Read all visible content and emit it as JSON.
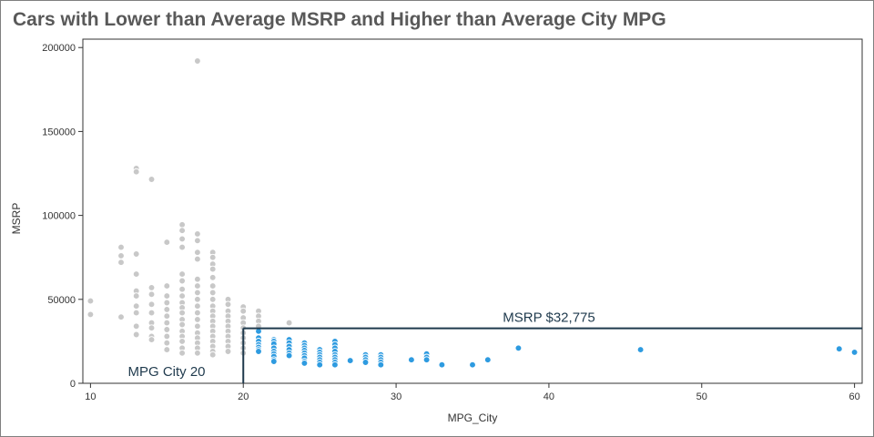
{
  "chart_data": {
    "type": "scatter",
    "title": "Cars with Lower than Average MSRP and Higher than Average City MPG",
    "xlabel": "MPG_City",
    "ylabel": "MSRP",
    "xlim": [
      9.5,
      60.5
    ],
    "ylim": [
      0,
      205000
    ],
    "xticks": [
      "10",
      "20",
      "30",
      "40",
      "50",
      "60"
    ],
    "yticks": [
      "0",
      "50000",
      "100000",
      "150000",
      "200000"
    ],
    "grid": false,
    "legend": "none",
    "colors": {
      "highlight": "#2e9be0",
      "other": "#c8c8c8",
      "reference": "#1f3a4d"
    },
    "reference_lines": {
      "msrp": {
        "value": 32775,
        "label": "MSRP $32,775"
      },
      "mpg": {
        "value": 20,
        "label": "MPG City 20"
      }
    },
    "series": [
      {
        "group": "other",
        "points": [
          [
            10,
            49000
          ],
          [
            10,
            41000
          ],
          [
            12,
            81000
          ],
          [
            12,
            76000
          ],
          [
            12,
            72000
          ],
          [
            12,
            39500
          ],
          [
            13,
            128000
          ],
          [
            13,
            126000
          ],
          [
            13,
            77000
          ],
          [
            13,
            65000
          ],
          [
            13,
            55000
          ],
          [
            13,
            52000
          ],
          [
            13,
            46000
          ],
          [
            13,
            42000
          ],
          [
            13,
            34000
          ],
          [
            13,
            29000
          ],
          [
            14,
            121500
          ],
          [
            14,
            57000
          ],
          [
            14,
            53000
          ],
          [
            14,
            47000
          ],
          [
            14,
            42000
          ],
          [
            14,
            36000
          ],
          [
            14,
            33000
          ],
          [
            14,
            28000
          ],
          [
            14,
            26000
          ],
          [
            15,
            84000
          ],
          [
            15,
            58000
          ],
          [
            15,
            52000
          ],
          [
            15,
            48000
          ],
          [
            15,
            44000
          ],
          [
            15,
            40000
          ],
          [
            15,
            36000
          ],
          [
            15,
            32000
          ],
          [
            15,
            28000
          ],
          [
            15,
            24000
          ],
          [
            15,
            20000
          ],
          [
            16,
            94500
          ],
          [
            16,
            91000
          ],
          [
            16,
            86000
          ],
          [
            16,
            81000
          ],
          [
            16,
            65000
          ],
          [
            16,
            61000
          ],
          [
            16,
            56000
          ],
          [
            16,
            52000
          ],
          [
            16,
            48000
          ],
          [
            16,
            45000
          ],
          [
            16,
            42000
          ],
          [
            16,
            38000
          ],
          [
            16,
            35000
          ],
          [
            16,
            31000
          ],
          [
            16,
            28000
          ],
          [
            16,
            25000
          ],
          [
            16,
            21000
          ],
          [
            16,
            18000
          ],
          [
            17,
            192000
          ],
          [
            17,
            89000
          ],
          [
            17,
            85000
          ],
          [
            17,
            78000
          ],
          [
            17,
            74000
          ],
          [
            17,
            62000
          ],
          [
            17,
            58000
          ],
          [
            17,
            54000
          ],
          [
            17,
            50000
          ],
          [
            17,
            46000
          ],
          [
            17,
            42000
          ],
          [
            17,
            38000
          ],
          [
            17,
            34000
          ],
          [
            17,
            30000
          ],
          [
            17,
            27000
          ],
          [
            17,
            24000
          ],
          [
            17,
            21000
          ],
          [
            17,
            18000
          ],
          [
            18,
            78000
          ],
          [
            18,
            75000
          ],
          [
            18,
            71000
          ],
          [
            18,
            68000
          ],
          [
            18,
            63000
          ],
          [
            18,
            58000
          ],
          [
            18,
            54000
          ],
          [
            18,
            50000
          ],
          [
            18,
            46000
          ],
          [
            18,
            43000
          ],
          [
            18,
            40000
          ],
          [
            18,
            37000
          ],
          [
            18,
            34000
          ],
          [
            18,
            31000
          ],
          [
            18,
            28000
          ],
          [
            18,
            25000
          ],
          [
            18,
            22000
          ],
          [
            18,
            19000
          ],
          [
            18,
            17000
          ],
          [
            19,
            50000
          ],
          [
            19,
            47000
          ],
          [
            19,
            43000
          ],
          [
            19,
            40000
          ],
          [
            19,
            37000
          ],
          [
            19,
            34000
          ],
          [
            19,
            31000
          ],
          [
            19,
            28000
          ],
          [
            19,
            25000
          ],
          [
            19,
            22000
          ],
          [
            19,
            19000
          ],
          [
            20,
            45500
          ],
          [
            20,
            43000
          ],
          [
            20,
            39000
          ],
          [
            20,
            36000
          ],
          [
            20,
            33000
          ],
          [
            20,
            30000
          ],
          [
            20,
            27000
          ],
          [
            20,
            24000
          ],
          [
            20,
            21000
          ],
          [
            20,
            18000
          ],
          [
            21,
            43000
          ],
          [
            21,
            40000
          ],
          [
            21,
            37000
          ],
          [
            21,
            34000
          ],
          [
            23,
            36000
          ]
        ]
      },
      {
        "group": "highlight",
        "points": [
          [
            21,
            31000
          ],
          [
            21,
            27000
          ],
          [
            21,
            25000
          ],
          [
            21,
            23000
          ],
          [
            21,
            21500
          ],
          [
            21,
            20000
          ],
          [
            21,
            19000
          ],
          [
            22,
            26000
          ],
          [
            22,
            25000
          ],
          [
            22,
            23500
          ],
          [
            22,
            21000
          ],
          [
            22,
            19000
          ],
          [
            22,
            17500
          ],
          [
            22,
            16000
          ],
          [
            22,
            14000
          ],
          [
            22,
            13000
          ],
          [
            23,
            26000
          ],
          [
            23,
            24000
          ],
          [
            23,
            22000
          ],
          [
            23,
            20000
          ],
          [
            23,
            18000
          ],
          [
            23,
            16500
          ],
          [
            24,
            24000
          ],
          [
            24,
            22500
          ],
          [
            24,
            21000
          ],
          [
            24,
            19500
          ],
          [
            24,
            18000
          ],
          [
            24,
            16500
          ],
          [
            24,
            15000
          ],
          [
            24,
            13000
          ],
          [
            24,
            12000
          ],
          [
            25,
            20000
          ],
          [
            25,
            18500
          ],
          [
            25,
            17000
          ],
          [
            25,
            15500
          ],
          [
            25,
            14000
          ],
          [
            25,
            12500
          ],
          [
            25,
            11000
          ],
          [
            26,
            25000
          ],
          [
            26,
            23000
          ],
          [
            26,
            21000
          ],
          [
            26,
            19000
          ],
          [
            26,
            17000
          ],
          [
            26,
            15500
          ],
          [
            26,
            14000
          ],
          [
            26,
            12500
          ],
          [
            26,
            11000
          ],
          [
            27,
            13500
          ],
          [
            28,
            17000
          ],
          [
            28,
            15500
          ],
          [
            28,
            14000
          ],
          [
            28,
            12500
          ],
          [
            29,
            17000
          ],
          [
            29,
            15500
          ],
          [
            29,
            14000
          ],
          [
            29,
            12500
          ],
          [
            29,
            11000
          ],
          [
            31,
            14000
          ],
          [
            32,
            17500
          ],
          [
            32,
            15500
          ],
          [
            32,
            14000
          ],
          [
            33,
            11000
          ],
          [
            35,
            11000
          ],
          [
            36,
            14000
          ],
          [
            38,
            21000
          ],
          [
            46,
            20000
          ],
          [
            59,
            20500
          ],
          [
            60,
            18500
          ]
        ]
      }
    ]
  }
}
